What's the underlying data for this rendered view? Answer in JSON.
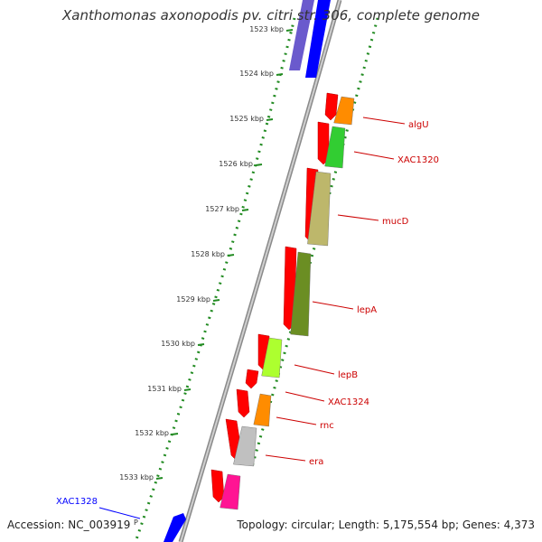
{
  "title": "Xanthomonas axonopodis pv. citri str. 306, complete genome",
  "footer": {
    "accession": "Accession: NC_003919",
    "topology": "Topology: circular; Length: 5,175,554 bp; Genes: 4,373"
  },
  "ticks": [
    "1523 kbp",
    "1524 kbp",
    "1525 kbp",
    "1526 kbp",
    "1527 kbp",
    "1528 kbp",
    "1529 kbp",
    "1530 kbp",
    "1531 kbp",
    "1532 kbp",
    "1533 kbp"
  ],
  "genes_forward": [
    {
      "label": "algU",
      "color": "#ff8c00"
    },
    {
      "label": "XAC1320",
      "color": "#32cd32"
    },
    {
      "label": "mucD",
      "color": "#bdb76b"
    },
    {
      "label": "lepA",
      "color": "#6b8e23"
    },
    {
      "label": "lepB",
      "color": "#adff2f"
    },
    {
      "label": "XAC1324",
      "color": "#ff8c00"
    },
    {
      "label": "rnc",
      "color": "#ffffff"
    },
    {
      "label": "era",
      "color": "#c0c0c0"
    }
  ],
  "blue_gene": {
    "label": "XAC1328",
    "color": "#0000ff"
  },
  "colors": {
    "cds_red": "#ff0000",
    "label_red": "#cc0000",
    "tick_green": "#228b22",
    "backbone": "#999999"
  }
}
